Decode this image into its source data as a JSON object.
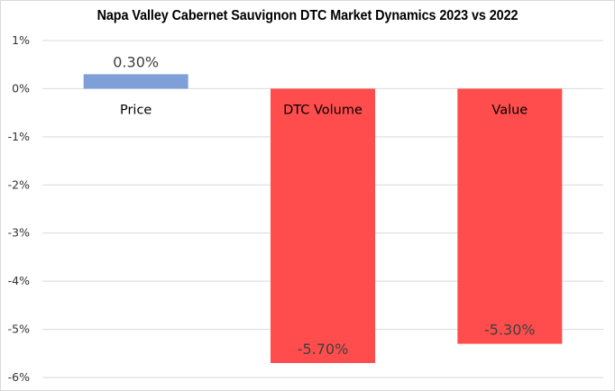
{
  "chart_data": {
    "type": "bar",
    "title": "Napa Valley Cabernet Sauvignon DTC Market Dynamics 2023 vs 2022",
    "categories": [
      "Price",
      "DTC Volume",
      "Value"
    ],
    "values": [
      0.3,
      -5.7,
      -5.3
    ],
    "data_labels": [
      "0.30%",
      "-5.70%",
      "-5.30%"
    ],
    "ylim": [
      -6,
      1
    ],
    "yticks": [
      1,
      0,
      -1,
      -2,
      -3,
      -4,
      -5,
      -6
    ],
    "ytick_labels": [
      "1%",
      "0%",
      "-1%",
      "-2%",
      "-3%",
      "-4%",
      "-5%",
      "-6%"
    ],
    "xlabel": "",
    "ylabel": "",
    "grid": true,
    "legend": "none",
    "colors": {
      "positive": "#7f9fd9",
      "negative": "#ff4d4d",
      "grid": "#d9d9d9",
      "text": "#333333"
    }
  }
}
